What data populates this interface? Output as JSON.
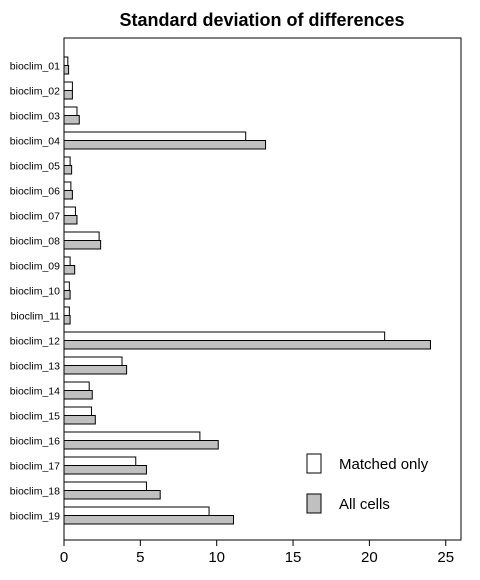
{
  "chart_data": {
    "type": "bar",
    "orientation": "horizontal",
    "title": "Standard deviation of differences",
    "xlabel": "",
    "ylabel": "",
    "xlim": [
      0,
      26
    ],
    "xticks": [
      0,
      5,
      10,
      15,
      20,
      25
    ],
    "grid": false,
    "legend_position": "bottom-right",
    "categories": [
      "bioclim_01",
      "bioclim_02",
      "bioclim_03",
      "bioclim_04",
      "bioclim_05",
      "bioclim_06",
      "bioclim_07",
      "bioclim_08",
      "bioclim_09",
      "bioclim_10",
      "bioclim_11",
      "bioclim_12",
      "bioclim_13",
      "bioclim_14",
      "bioclim_15",
      "bioclim_16",
      "bioclim_17",
      "bioclim_18",
      "bioclim_19"
    ],
    "series": [
      {
        "name": "Matched only",
        "color": "#ffffff",
        "values": [
          0.25,
          0.55,
          0.85,
          11.9,
          0.4,
          0.45,
          0.75,
          2.3,
          0.4,
          0.35,
          0.35,
          21.0,
          3.8,
          1.65,
          1.8,
          8.9,
          4.7,
          5.4,
          9.5
        ]
      },
      {
        "name": "All cells",
        "color": "#c0c0c0",
        "values": [
          0.3,
          0.55,
          1.0,
          13.2,
          0.5,
          0.55,
          0.85,
          2.4,
          0.7,
          0.4,
          0.4,
          24.0,
          4.1,
          1.85,
          2.05,
          10.1,
          5.4,
          6.3,
          11.1
        ]
      }
    ]
  }
}
